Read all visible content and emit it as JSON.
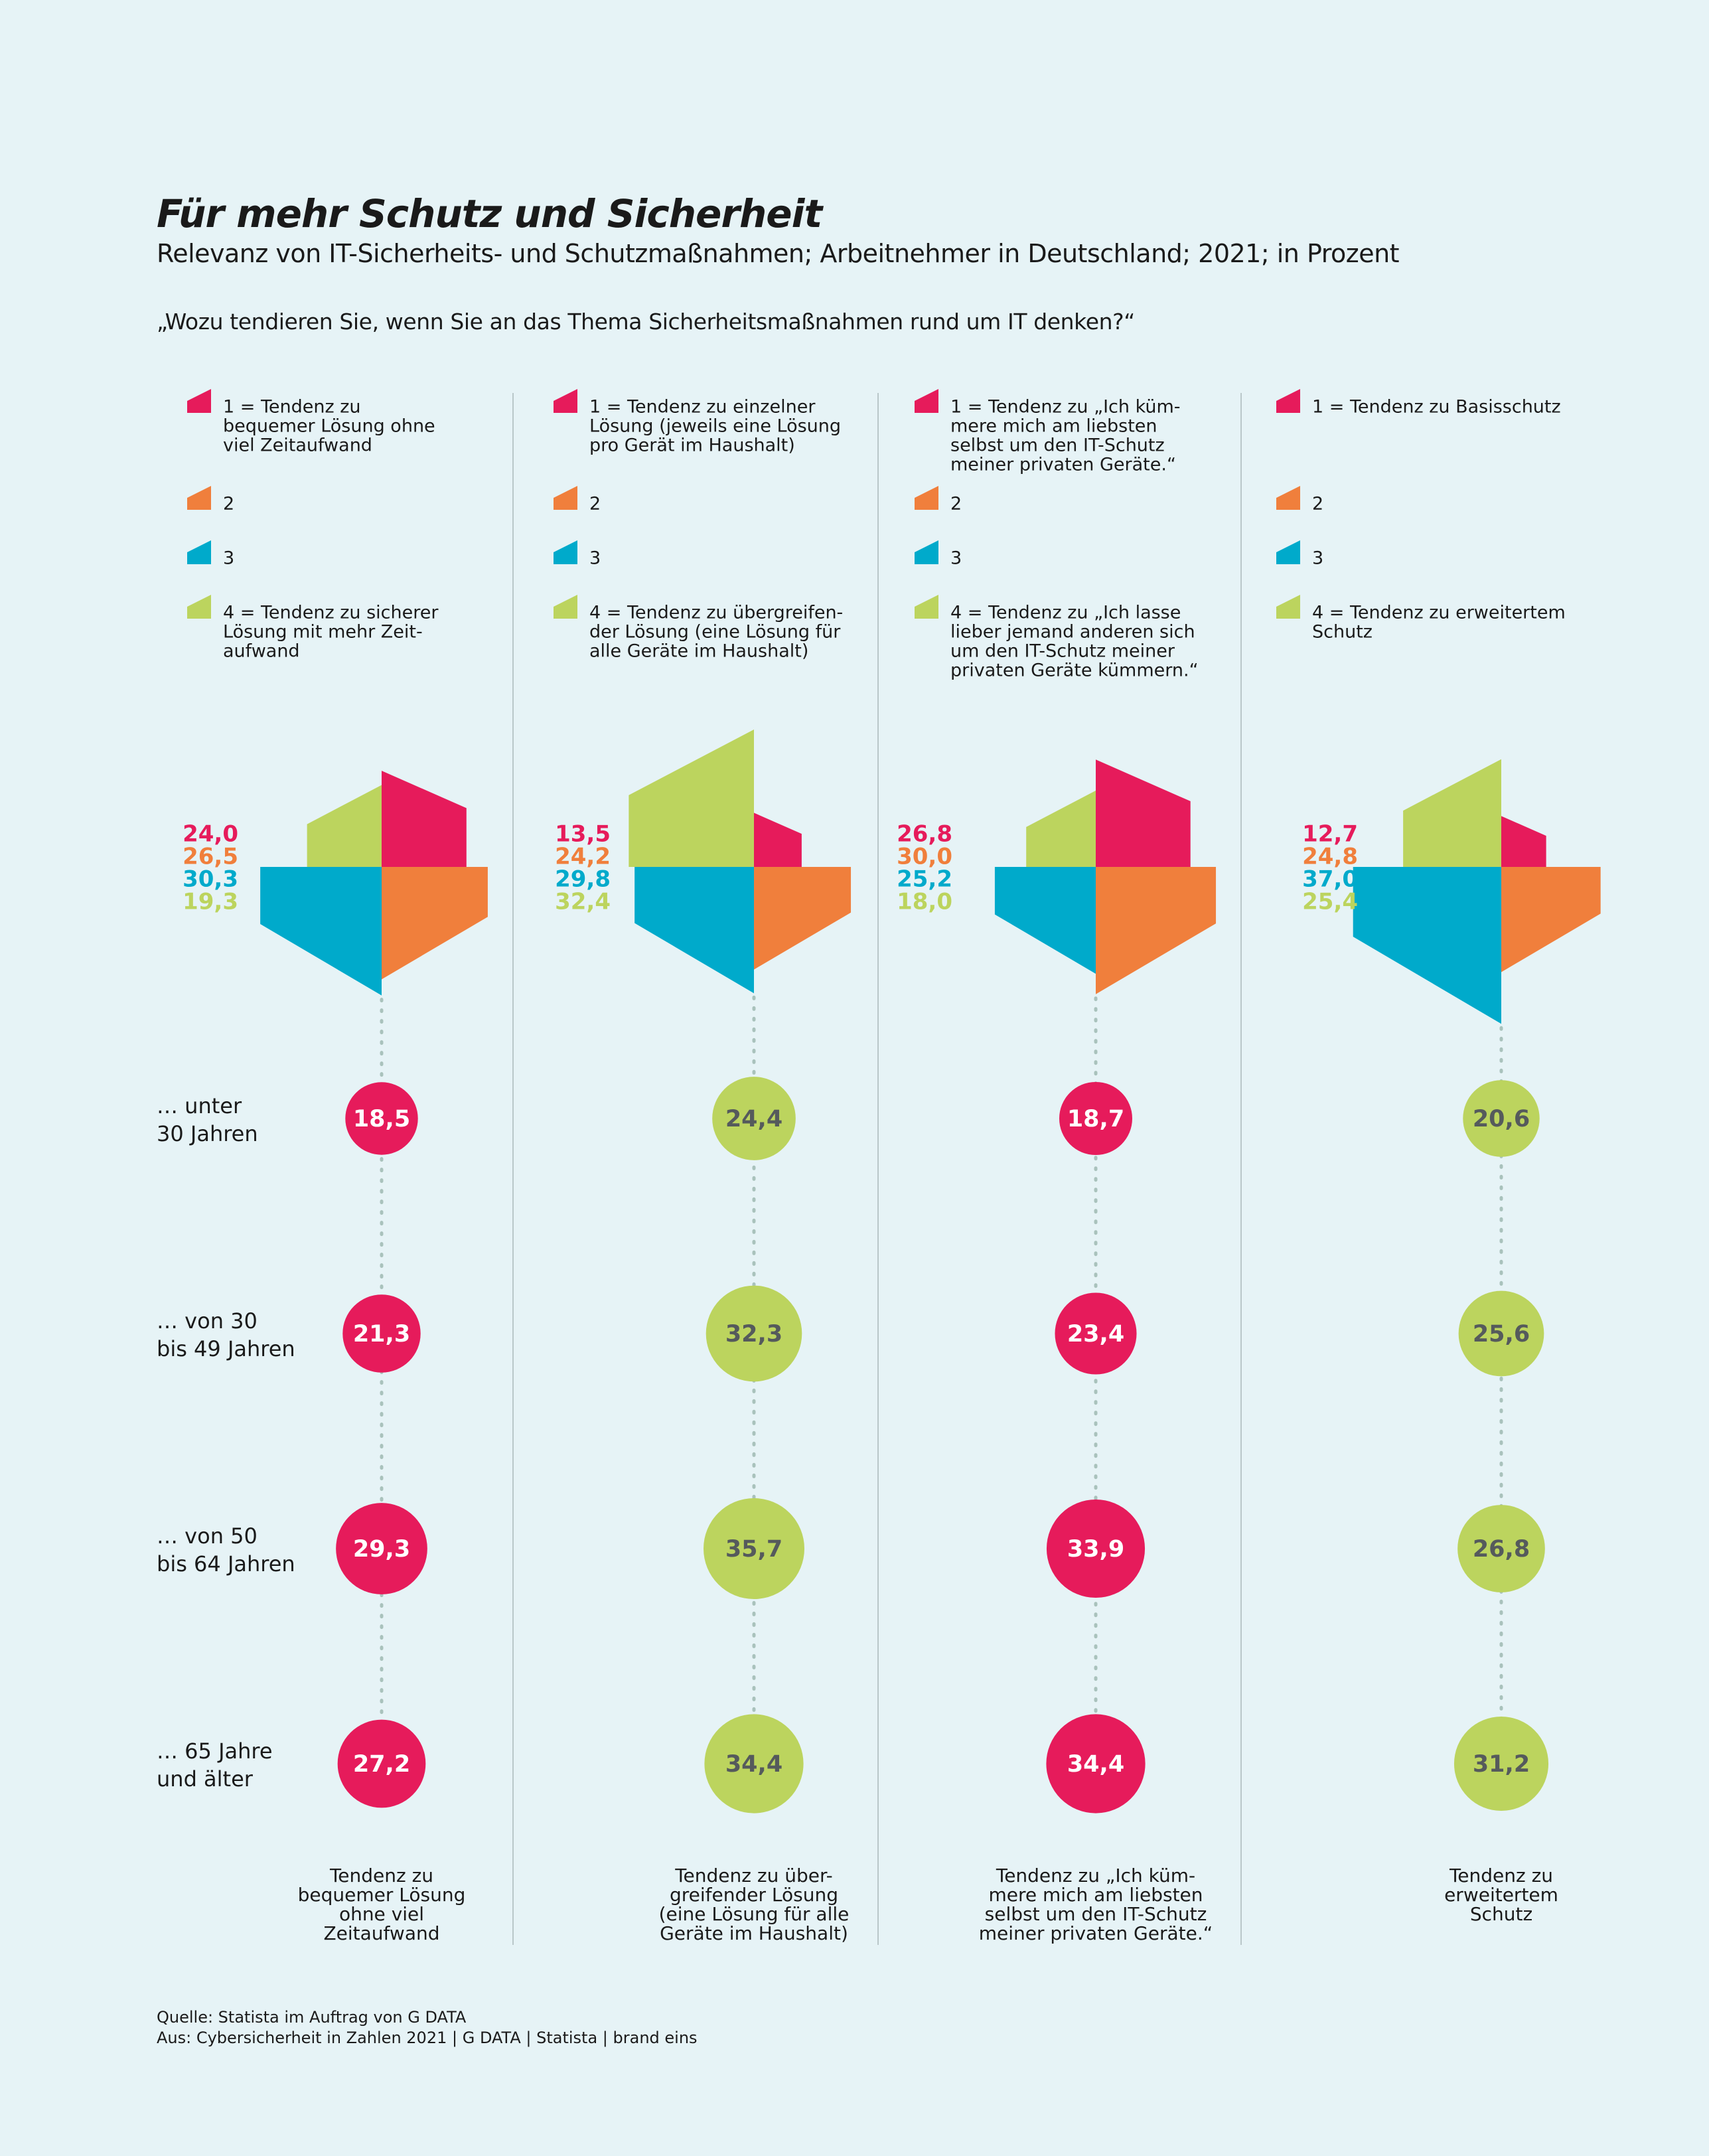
{
  "title": "Für mehr Schutz und Sicherheit",
  "subtitle": "Relevanz von IT-Sicherheits- und Schutzmaßnahmen; Arbeitnehmer in Deutschland; 2021; in Prozent",
  "question": "„Wozu tendieren Sie, wenn Sie an das Thema Sicherheitsmaßnahmen rund um IT denken?“",
  "source_line1": "Quelle: Statista im Auftrag von G DATA",
  "source_line2": "Aus: Cybersicherheit in Zahlen 2021 | G DATA | Statista | brand eins",
  "colors": {
    "1": "#e61b5b",
    "2": "#f07f3c",
    "3": "#00aacb",
    "4": "#bcd45e",
    "divider": "#b9c7c9",
    "dots": "#a9c2bc",
    "bubble_text_dark": "#555a5c",
    "background": "#e6f3f6"
  },
  "chart_data": {
    "type": "bar",
    "age_groups": [
      [
        "… unter",
        "30 Jahren"
      ],
      [
        "… von 30",
        "bis 49 Jahren"
      ],
      [
        "… von 50",
        "bis 64 Jahren"
      ],
      [
        "… 65 Jahre",
        "und älter"
      ]
    ],
    "panels": [
      {
        "legend": [
          [
            "1 = Tendenz zu",
            "bequemer Lösung ohne",
            "viel Zeitaufwand"
          ],
          [
            "2"
          ],
          [
            "3"
          ],
          [
            "4 = Tendenz zu sicherer",
            "Lösung mit mehr Zeit-",
            "aufwand"
          ]
        ],
        "values": [
          24.0,
          26.5,
          30.3,
          19.3
        ],
        "labels": [
          "24,0",
          "26,5",
          "30,3",
          "19,3"
        ],
        "age_series": 1,
        "age_values": [
          18.5,
          21.3,
          29.3,
          27.2
        ],
        "age_labels": [
          "18,5",
          "21,3",
          "29,3",
          "27,2"
        ],
        "footer": [
          "Tendenz zu",
          "bequemer Lösung",
          "ohne viel",
          "Zeitaufwand"
        ]
      },
      {
        "legend": [
          [
            "1 = Tendenz zu einzelner",
            "Lösung (jeweils eine Lösung",
            "pro Gerät im Haushalt)"
          ],
          [
            "2"
          ],
          [
            "3"
          ],
          [
            "4 = Tendenz zu übergreifen-",
            "der Lösung (eine Lösung für",
            "alle Geräte im Haushalt)"
          ]
        ],
        "values": [
          13.5,
          24.2,
          29.8,
          32.4
        ],
        "labels": [
          "13,5",
          "24,2",
          "29,8",
          "32,4"
        ],
        "age_series": 4,
        "age_values": [
          24.4,
          32.3,
          35.7,
          34.4
        ],
        "age_labels": [
          "24,4",
          "32,3",
          "35,7",
          "34,4"
        ],
        "footer": [
          "Tendenz zu über-",
          "greifender Lösung",
          "(eine Lösung für alle",
          "Geräte im Haushalt)"
        ]
      },
      {
        "legend": [
          [
            "1 = Tendenz zu „Ich küm-",
            "mere mich am liebsten",
            "selbst um den IT-Schutz",
            "meiner privaten Geräte.“"
          ],
          [
            "2"
          ],
          [
            "3"
          ],
          [
            "4 = Tendenz zu „Ich lasse",
            "lieber jemand anderen sich",
            "um den IT-Schutz meiner",
            "privaten Geräte kümmern.“"
          ]
        ],
        "values": [
          26.8,
          30.0,
          25.2,
          18.0
        ],
        "labels": [
          "26,8",
          "30,0",
          "25,2",
          "18,0"
        ],
        "age_series": 1,
        "age_values": [
          18.7,
          23.4,
          33.9,
          34.4
        ],
        "age_labels": [
          "18,7",
          "23,4",
          "33,9",
          "34,4"
        ],
        "footer": [
          "Tendenz zu „Ich küm-",
          "mere mich am liebsten",
          "selbst um den IT-Schutz",
          "meiner privaten Geräte.“"
        ]
      },
      {
        "legend": [
          [
            "1 = Tendenz zu Basisschutz"
          ],
          [
            "2"
          ],
          [
            "3"
          ],
          [
            "4 = Tendenz zu erweitertem",
            "Schutz"
          ]
        ],
        "values": [
          12.7,
          24.8,
          37.0,
          25.4
        ],
        "labels": [
          "12,7",
          "24,8",
          "37,0",
          "25,4"
        ],
        "age_series": 4,
        "age_values": [
          20.6,
          25.6,
          26.8,
          31.2
        ],
        "age_labels": [
          "20,6",
          "25,6",
          "26,8",
          "31,2"
        ],
        "footer": [
          "Tendenz zu",
          "erweitertem",
          "Schutz"
        ]
      }
    ]
  }
}
